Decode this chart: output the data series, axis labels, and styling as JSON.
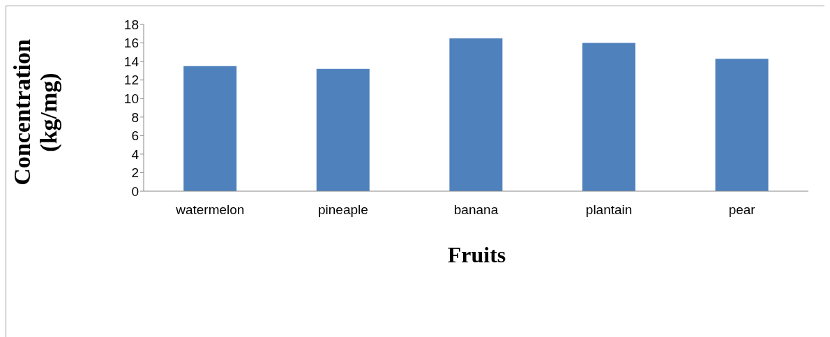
{
  "chart_data": {
    "type": "bar",
    "xlabel": "Fruits",
    "ylabel": "Concentration (kg/mg)",
    "categories": [
      "watermelon",
      "pineaple",
      "banana",
      "plantain",
      "pear"
    ],
    "values": [
      13.5,
      13.2,
      16.5,
      16.0,
      14.3
    ],
    "color": "#4f81bd",
    "ylim": [
      0,
      18
    ],
    "yticks": [
      0,
      2,
      4,
      6,
      8,
      10,
      12,
      14,
      16,
      18
    ],
    "grid": false,
    "legend": false
  }
}
